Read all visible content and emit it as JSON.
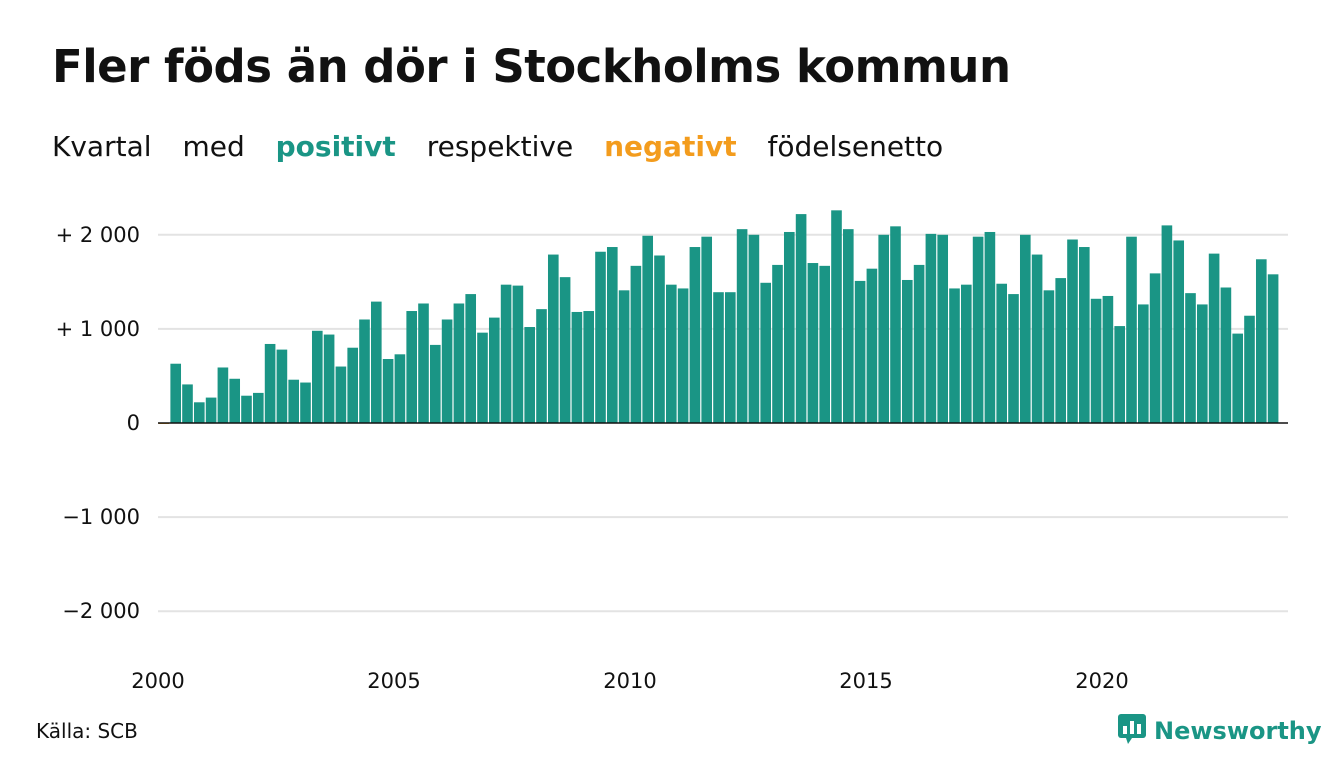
{
  "title": "Fler föds än dör i Stockholms kommun",
  "subtitle": {
    "w1": "Kvartal",
    "w2": "med",
    "positive": "positivt",
    "w3": "respektive",
    "negative": "negativt",
    "w4": "födelsenetto"
  },
  "colors": {
    "positive": "#1a9585",
    "negative": "#f39c1d",
    "grid": "#e3e3e3",
    "axis": "#111111"
  },
  "source": "Källa: SCB",
  "brand": {
    "name": "Newsworthy",
    "icon": "newsworthy-logo-icon"
  },
  "chart_data": {
    "type": "bar",
    "start": "2000 Q1",
    "ylim": [
      -2300,
      2300
    ],
    "yticks": [
      {
        "value": 2000,
        "label": "+ 2 000"
      },
      {
        "value": 1000,
        "label": "+ 1 000"
      },
      {
        "value": 0,
        "label": "0"
      },
      {
        "value": -1000,
        "label": "−1 000"
      },
      {
        "value": -2000,
        "label": "−2 000"
      }
    ],
    "xticks": [
      {
        "year": 2000,
        "label": "2000"
      },
      {
        "year": 2005,
        "label": "2005"
      },
      {
        "year": 2010,
        "label": "2010"
      },
      {
        "year": 2015,
        "label": "2015"
      },
      {
        "year": 2020,
        "label": "2020"
      }
    ],
    "grid": true,
    "values": [
      -10,
      630,
      410,
      220,
      270,
      590,
      470,
      290,
      320,
      840,
      780,
      460,
      430,
      980,
      940,
      600,
      800,
      1100,
      1290,
      680,
      730,
      1190,
      1270,
      830,
      1100,
      1270,
      1370,
      960,
      1120,
      1470,
      1460,
      1020,
      1210,
      1790,
      1550,
      1180,
      1190,
      1820,
      1870,
      1410,
      1670,
      1990,
      1780,
      1470,
      1430,
      1870,
      1980,
      1390,
      1390,
      2060,
      2000,
      1490,
      1680,
      2030,
      2220,
      1700,
      1670,
      2260,
      2060,
      1510,
      1640,
      2000,
      2090,
      1520,
      1680,
      2010,
      2000,
      1430,
      1470,
      1980,
      2030,
      1480,
      1370,
      2000,
      1790,
      1410,
      1540,
      1950,
      1870,
      1320,
      1350,
      1030,
      1980,
      1260,
      1590,
      2100,
      1940,
      1380,
      1260,
      1800,
      1440,
      950,
      1140,
      1740,
      1580
    ]
  }
}
